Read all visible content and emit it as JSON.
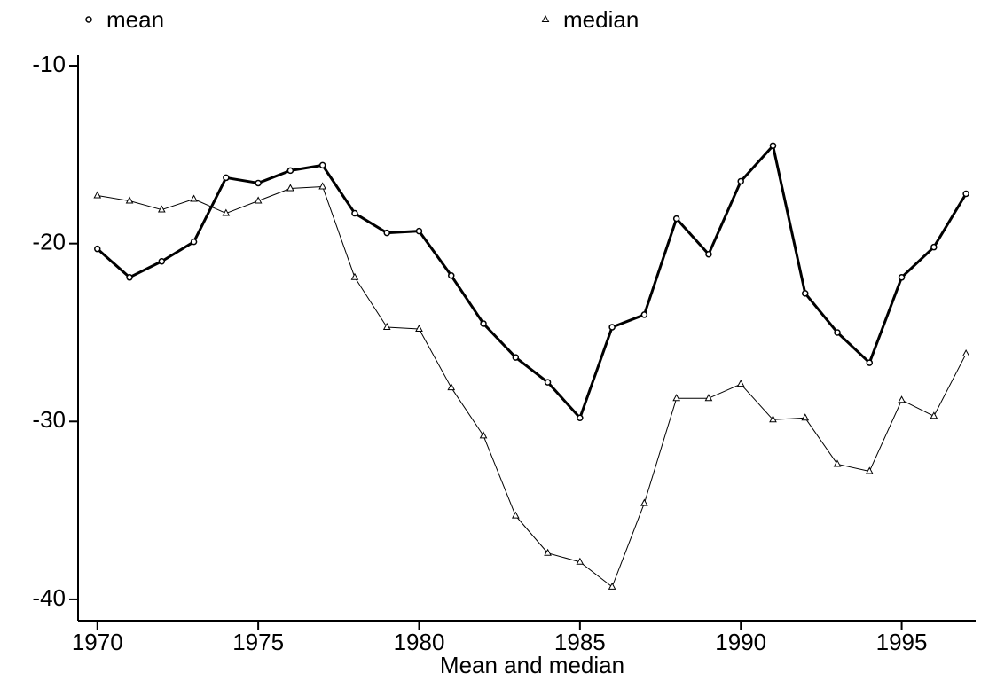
{
  "chart_data": {
    "type": "line",
    "x_label": "Mean and median",
    "x": [
      1970,
      1971,
      1972,
      1973,
      1974,
      1975,
      1976,
      1977,
      1978,
      1979,
      1980,
      1981,
      1982,
      1983,
      1984,
      1985,
      1986,
      1987,
      1988,
      1989,
      1990,
      1991,
      1992,
      1993,
      1994,
      1995,
      1996,
      1997
    ],
    "series": [
      {
        "name": "mean",
        "color": "#000000",
        "marker": "circle",
        "line_width": 3,
        "values": [
          -20.3,
          -21.9,
          -21.0,
          -19.9,
          -16.3,
          -16.6,
          -15.9,
          -15.6,
          -18.3,
          -19.4,
          -19.3,
          -21.8,
          -24.5,
          -26.4,
          -27.8,
          -29.8,
          -24.7,
          -24.0,
          -18.6,
          -20.6,
          -16.5,
          -14.5,
          -22.8,
          -25.0,
          -26.7,
          -21.9,
          -20.2,
          -17.2
        ]
      },
      {
        "name": "median",
        "color": "#000000",
        "marker": "triangle",
        "line_width": 1,
        "values": [
          -17.3,
          -17.6,
          -18.1,
          -17.5,
          -18.3,
          -17.6,
          -16.9,
          -16.8,
          -21.9,
          -24.7,
          -24.8,
          -28.1,
          -30.8,
          -35.3,
          -37.4,
          -37.9,
          -39.3,
          -34.6,
          -28.7,
          -28.7,
          -27.9,
          -29.9,
          -29.8,
          -32.4,
          -32.8,
          -28.8,
          -29.7,
          -26.2
        ]
      }
    ],
    "xlim": [
      1969.4,
      1997.3
    ],
    "xticks": [
      1970,
      1975,
      1980,
      1985,
      1990,
      1995
    ],
    "ylim": [
      -41.2,
      -9.4
    ],
    "yticks": [
      -10,
      -20,
      -30,
      -40
    ],
    "grid": false
  }
}
